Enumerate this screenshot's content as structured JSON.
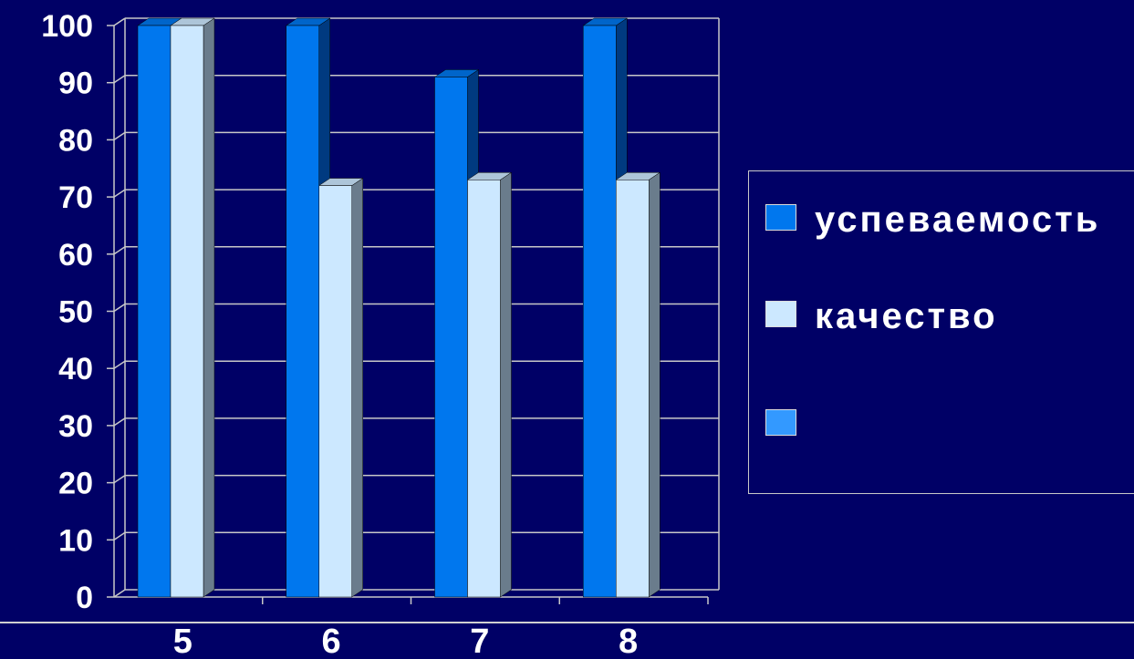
{
  "chart_data": {
    "type": "bar",
    "categories": [
      "5",
      "6",
      "7",
      "8"
    ],
    "series": [
      {
        "name": "успеваемость",
        "values": [
          100,
          100,
          91,
          100
        ],
        "color": "#0077ee"
      },
      {
        "name": "качество",
        "values": [
          100,
          72,
          73,
          73
        ],
        "color": "#cce8ff"
      }
    ],
    "yticks": [
      "0",
      "10",
      "20",
      "30",
      "40",
      "50",
      "60",
      "70",
      "80",
      "90",
      "100"
    ],
    "ylim": [
      0,
      100
    ],
    "grid": true,
    "legend_position": "right",
    "title": "",
    "xlabel": "",
    "ylabel": ""
  },
  "legend": {
    "items": [
      {
        "label": "успеваемость",
        "color": "#0077ee"
      },
      {
        "label": "качество",
        "color": "#cce8ff"
      },
      {
        "label": "",
        "color": "#3399ff"
      }
    ]
  },
  "colors": {
    "background": "#000066",
    "gridline": "#c8c8c8",
    "text": "#ffffff"
  }
}
